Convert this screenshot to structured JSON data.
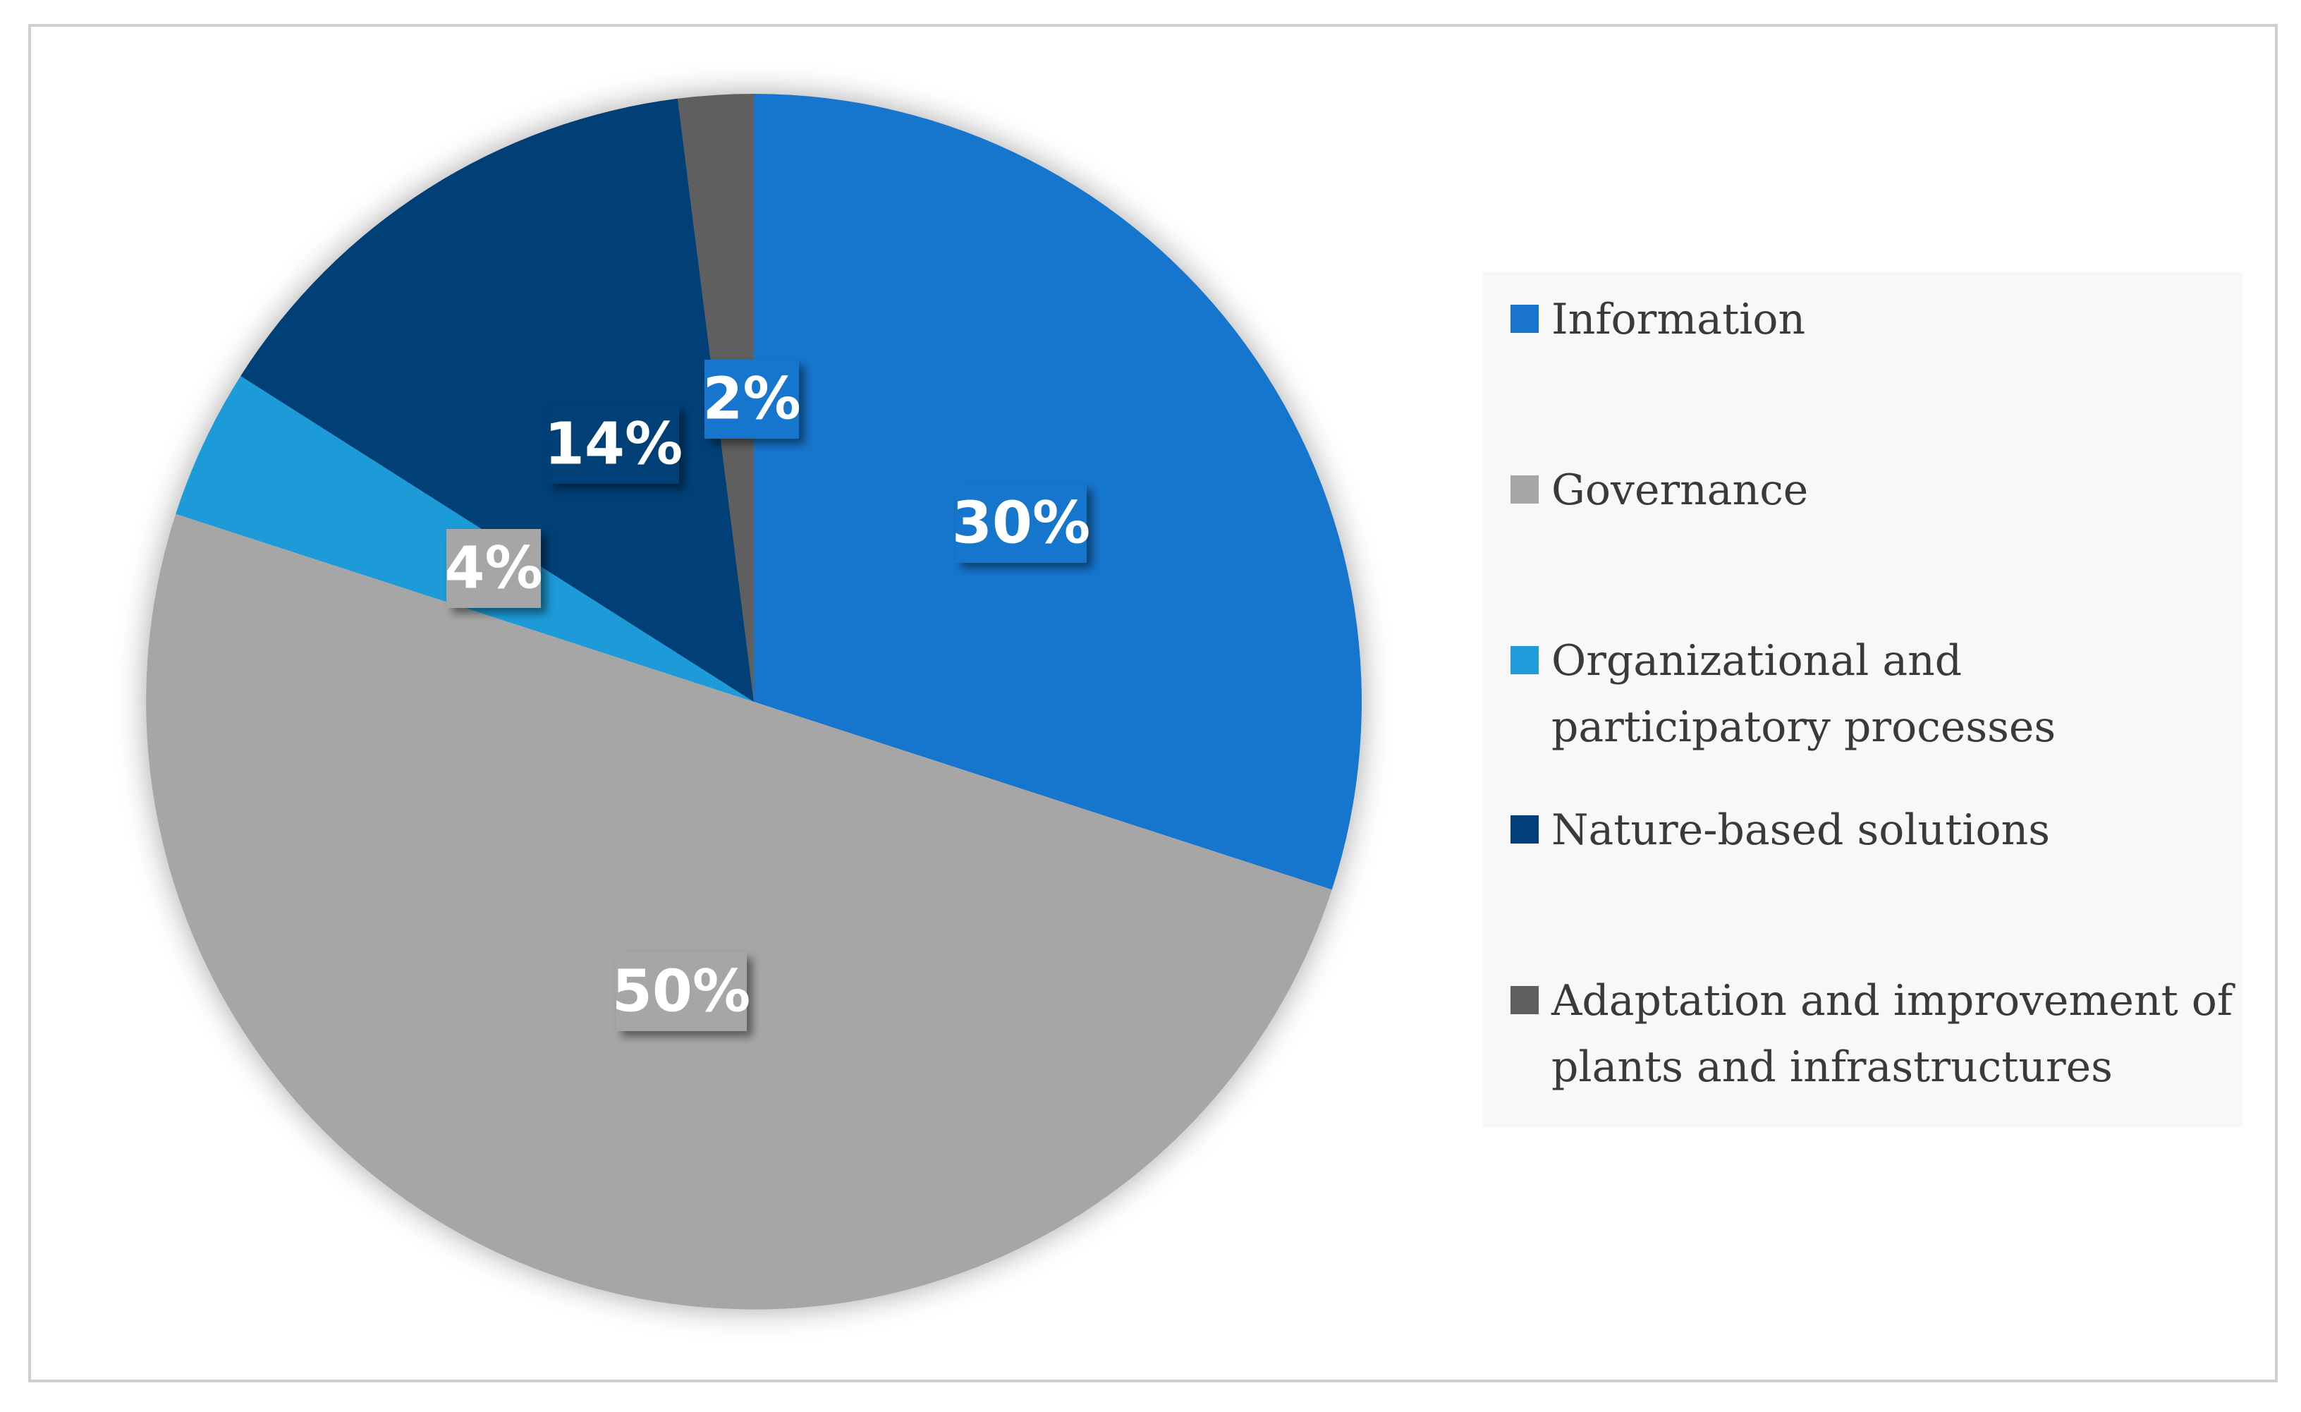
{
  "chart_data": {
    "type": "pie",
    "title": "",
    "start_angle_deg": 0,
    "direction": "clockwise",
    "slices": [
      {
        "label": "Information",
        "value": 30,
        "display": "30%",
        "color": "#1874cd"
      },
      {
        "label": "Governance",
        "value": 50,
        "display": "50%",
        "color": "#a6a6a6"
      },
      {
        "label": "Organizational and participatory processes",
        "value": 4,
        "display": "4%",
        "color": "#1e9bd8"
      },
      {
        "label": "Nature-based solutions",
        "value": 14,
        "display": "14%",
        "color": "#003f77"
      },
      {
        "label": "Adaptation and improvement of plants and infrastructures",
        "value": 2,
        "display": "2%",
        "color": "#5f5f5f"
      }
    ],
    "legend_position": "right"
  }
}
